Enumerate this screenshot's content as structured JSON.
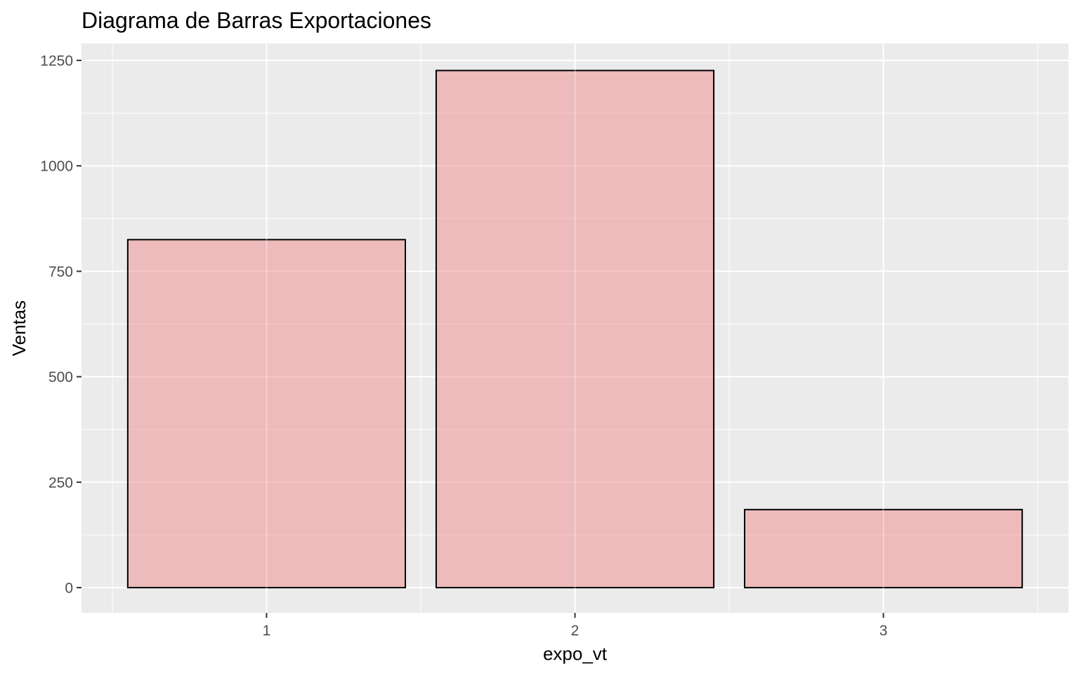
{
  "chart_data": {
    "type": "bar",
    "title": "Diagrama de Barras Exportaciones",
    "xlabel": "expo_vt",
    "ylabel": "Ventas",
    "categories": [
      "1",
      "2",
      "3"
    ],
    "values": [
      825,
      1226,
      185
    ],
    "ylim": [
      -60,
      1290
    ],
    "yticks": [
      0,
      250,
      500,
      750,
      1000,
      1250
    ],
    "ytick_labels": [
      "0",
      "250",
      "500",
      "750",
      "1000",
      "1250"
    ],
    "grid": true,
    "legend": "none",
    "colors": {
      "panel_background": "#ebebeb",
      "grid": "#ffffff",
      "bar_fill": "#f08080",
      "bar_fill_opacity": 0.45,
      "bar_stroke": "#000000",
      "tick_text": "#4d4d4d",
      "tick_mark": "#333333"
    }
  }
}
